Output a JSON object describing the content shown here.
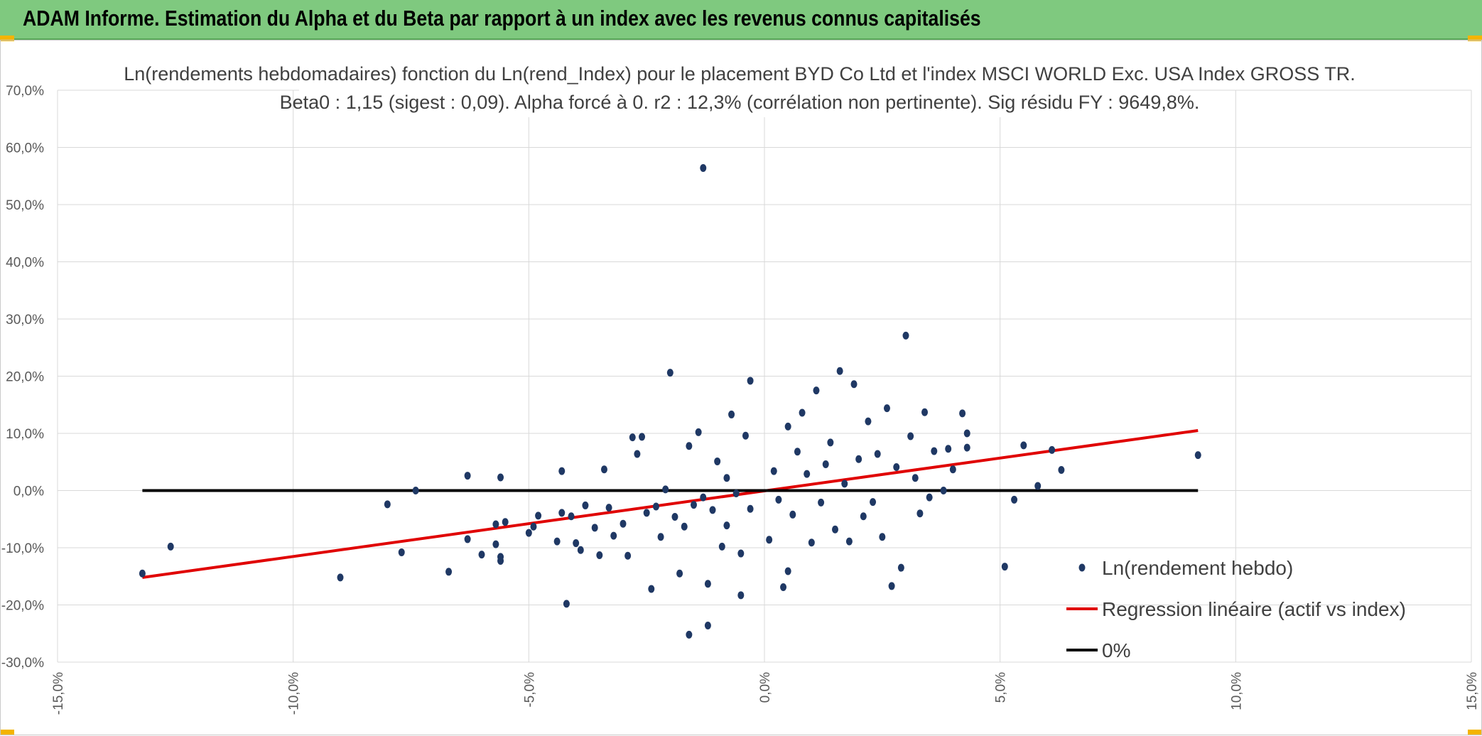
{
  "header": {
    "title": "ADAM Informe. Estimation du Alpha et du Beta par rapport à un index avec les revenus connus capitalisés"
  },
  "colors": {
    "header_bg": "#7fc97f",
    "points": "#1f3864",
    "regression": "#e00000",
    "zero_line": "#000000",
    "grid": "#d9d9d9"
  },
  "chart_data": {
    "type": "scatter",
    "title": "Ln(rendements hebdomadaires) fonction du Ln(rend_Index) pour le placement BYD Co Ltd et l'index MSCI WORLD Exc. USA Index GROSS TR.",
    "subtitle": "Beta0 : 1,15 (sigest : 0,09). Alpha forcé à 0. r2 : 12,3% (corrélation non pertinente). Sig résidu FY : 9649,8%.",
    "xlabel": "",
    "ylabel": "",
    "xlim": [
      -15,
      15
    ],
    "ylim": [
      -30,
      70
    ],
    "x_ticks": [
      "-15,0%",
      "-10,0%",
      "-5,0%",
      "0,0%",
      "5,0%",
      "10,0%",
      "15,0%"
    ],
    "y_ticks": [
      "70,0%",
      "60,0%",
      "50,0%",
      "40,0%",
      "30,0%",
      "20,0%",
      "10,0%",
      "0,0%",
      "-10,0%",
      "-20,0%",
      "-30,0%"
    ],
    "grid": true,
    "legend_position": "bottom-right",
    "series": [
      {
        "name": "Ln(rendement hebdo)",
        "kind": "scatter",
        "points": [
          [
            -13.2,
            -14.5
          ],
          [
            -12.6,
            -9.8
          ],
          [
            -9.0,
            -15.2
          ],
          [
            -8.0,
            -2.4
          ],
          [
            -7.7,
            -10.8
          ],
          [
            -7.4,
            0.0
          ],
          [
            -6.7,
            -14.2
          ],
          [
            -6.3,
            2.6
          ],
          [
            -6.3,
            -8.5
          ],
          [
            -6.0,
            -11.2
          ],
          [
            -5.7,
            -9.4
          ],
          [
            -5.7,
            -5.9
          ],
          [
            -5.6,
            -11.6
          ],
          [
            -5.6,
            -12.3
          ],
          [
            -5.6,
            2.3
          ],
          [
            -5.5,
            -5.5
          ],
          [
            -5.0,
            -7.4
          ],
          [
            -4.9,
            -6.3
          ],
          [
            -4.8,
            -4.4
          ],
          [
            -4.4,
            -8.9
          ],
          [
            -4.3,
            -3.9
          ],
          [
            -4.3,
            3.4
          ],
          [
            -4.2,
            -19.8
          ],
          [
            -4.1,
            -4.5
          ],
          [
            -4.0,
            -9.2
          ],
          [
            -3.9,
            -10.4
          ],
          [
            -3.8,
            -2.6
          ],
          [
            -3.6,
            -6.5
          ],
          [
            -3.5,
            -11.3
          ],
          [
            -3.4,
            3.7
          ],
          [
            -3.3,
            -3.0
          ],
          [
            -3.2,
            -7.9
          ],
          [
            -3.0,
            -5.8
          ],
          [
            -2.9,
            -11.4
          ],
          [
            -2.8,
            9.3
          ],
          [
            -2.7,
            6.4
          ],
          [
            -2.6,
            9.4
          ],
          [
            -2.5,
            -3.9
          ],
          [
            -2.4,
            -17.2
          ],
          [
            -2.3,
            -2.8
          ],
          [
            -2.2,
            -8.1
          ],
          [
            -2.1,
            0.2
          ],
          [
            -2.0,
            20.6
          ],
          [
            -1.9,
            -4.6
          ],
          [
            -1.8,
            -14.5
          ],
          [
            -1.7,
            -6.3
          ],
          [
            -1.6,
            7.8
          ],
          [
            -1.6,
            -25.2
          ],
          [
            -1.5,
            -2.5
          ],
          [
            -1.4,
            10.2
          ],
          [
            -1.3,
            -1.2
          ],
          [
            -1.2,
            -23.6
          ],
          [
            -1.1,
            -3.4
          ],
          [
            -1.0,
            5.1
          ],
          [
            -0.9,
            -9.8
          ],
          [
            -0.8,
            2.2
          ],
          [
            -0.8,
            -6.1
          ],
          [
            -0.7,
            13.3
          ],
          [
            -0.6,
            -0.5
          ],
          [
            -0.5,
            -11.0
          ],
          [
            -0.4,
            9.6
          ],
          [
            -0.3,
            -3.2
          ],
          [
            -1.3,
            56.4
          ],
          [
            -1.2,
            -16.3
          ],
          [
            -0.5,
            -18.3
          ],
          [
            -0.3,
            19.2
          ],
          [
            0.1,
            -8.6
          ],
          [
            0.2,
            3.4
          ],
          [
            0.3,
            -1.6
          ],
          [
            0.4,
            -16.9
          ],
          [
            0.5,
            -14.1
          ],
          [
            0.5,
            11.2
          ],
          [
            0.6,
            -4.2
          ],
          [
            0.7,
            6.8
          ],
          [
            0.8,
            13.6
          ],
          [
            0.9,
            2.9
          ],
          [
            1.0,
            -9.1
          ],
          [
            1.1,
            17.5
          ],
          [
            1.2,
            -2.1
          ],
          [
            1.3,
            4.6
          ],
          [
            1.4,
            8.4
          ],
          [
            1.5,
            -6.8
          ],
          [
            1.6,
            20.9
          ],
          [
            1.7,
            1.2
          ],
          [
            1.8,
            -8.9
          ],
          [
            1.9,
            18.6
          ],
          [
            2.0,
            5.5
          ],
          [
            2.1,
            -4.5
          ],
          [
            2.2,
            12.1
          ],
          [
            2.3,
            -2.0
          ],
          [
            2.4,
            6.4
          ],
          [
            2.5,
            -8.1
          ],
          [
            2.6,
            14.4
          ],
          [
            2.7,
            -16.7
          ],
          [
            2.8,
            4.1
          ],
          [
            2.9,
            -13.5
          ],
          [
            3.0,
            27.1
          ],
          [
            3.1,
            9.5
          ],
          [
            3.2,
            2.2
          ],
          [
            3.3,
            -4.0
          ],
          [
            3.4,
            13.7
          ],
          [
            3.5,
            -1.2
          ],
          [
            3.6,
            6.9
          ],
          [
            3.8,
            0.0
          ],
          [
            3.9,
            7.3
          ],
          [
            4.0,
            3.7
          ],
          [
            4.2,
            13.5
          ],
          [
            4.3,
            10.0
          ],
          [
            4.3,
            7.5
          ],
          [
            5.1,
            -13.3
          ],
          [
            5.3,
            -1.6
          ],
          [
            5.5,
            7.9
          ],
          [
            5.8,
            0.8
          ],
          [
            6.1,
            7.1
          ],
          [
            6.3,
            3.6
          ],
          [
            9.2,
            6.2
          ]
        ]
      },
      {
        "name": "Regression linéaire (actif vs index)",
        "kind": "line",
        "points": [
          [
            -13.2,
            -15.2
          ],
          [
            9.2,
            10.5
          ]
        ]
      },
      {
        "name": "0%",
        "kind": "line",
        "points": [
          [
            -13.2,
            0
          ],
          [
            9.2,
            0
          ]
        ]
      }
    ]
  }
}
